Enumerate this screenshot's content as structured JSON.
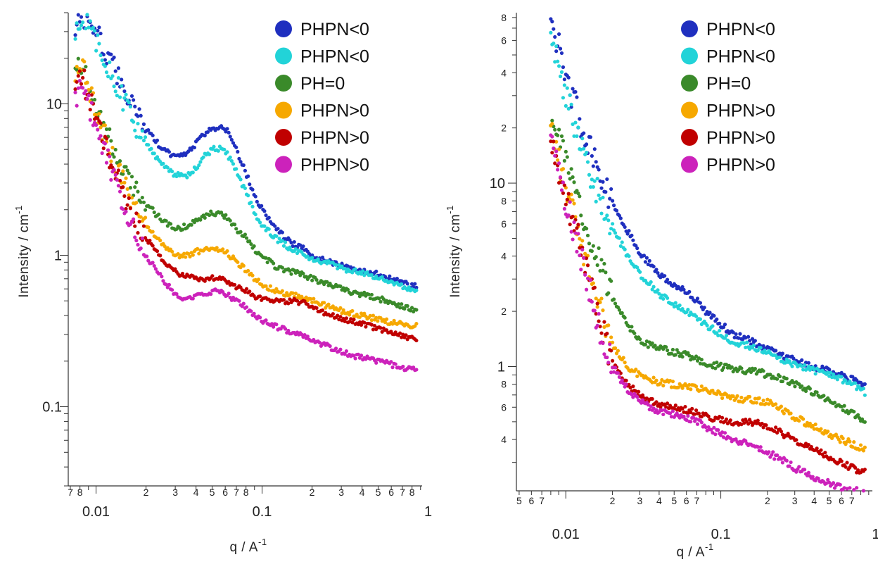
{
  "colors": {
    "navy": "#1f2fbf",
    "cyan": "#22d3d8",
    "green": "#3a8a2a",
    "orange": "#f6a800",
    "red": "#c00000",
    "magenta": "#cc22bb"
  },
  "chart_data": [
    {
      "type": "scatter",
      "xlabel": "q / A",
      "xlabel_sup": "-1",
      "ylabel": "Intensity / cm",
      "ylabel_sup": "-1",
      "xscale": "log",
      "yscale": "log",
      "xlim": [
        0.0068,
        0.92
      ],
      "ylim": [
        0.03,
        40
      ],
      "x_major_ticks": [
        {
          "v": 0.01,
          "label": "0.01"
        },
        {
          "v": 0.1,
          "label": "0.1"
        },
        {
          "v": 1,
          "label": "1"
        }
      ],
      "x_minor_ticks": [
        {
          "v": 0.007,
          "label": "7"
        },
        {
          "v": 0.008,
          "label": "8"
        },
        {
          "v": 0.02,
          "label": "2"
        },
        {
          "v": 0.03,
          "label": "3"
        },
        {
          "v": 0.04,
          "label": "4"
        },
        {
          "v": 0.05,
          "label": "5"
        },
        {
          "v": 0.06,
          "label": "6"
        },
        {
          "v": 0.07,
          "label": "7"
        },
        {
          "v": 0.08,
          "label": "8"
        },
        {
          "v": 0.2,
          "label": "2"
        },
        {
          "v": 0.3,
          "label": "3"
        },
        {
          "v": 0.4,
          "label": "4"
        },
        {
          "v": 0.5,
          "label": "5"
        },
        {
          "v": 0.6,
          "label": "6"
        },
        {
          "v": 0.7,
          "label": "7"
        },
        {
          "v": 0.8,
          "label": "8"
        }
      ],
      "y_major_ticks": [
        {
          "v": 0.1,
          "label": "0.1"
        },
        {
          "v": 1,
          "label": "1"
        },
        {
          "v": 10,
          "label": "10"
        }
      ],
      "y_minor_ticks": [],
      "legend_position": "top-right",
      "series": [
        {
          "name": "PHPN<0",
          "color": "navy",
          "x": [
            0.0075,
            0.008,
            0.0085,
            0.009,
            0.01,
            0.012,
            0.015,
            0.02,
            0.025,
            0.03,
            0.035,
            0.04,
            0.045,
            0.05,
            0.055,
            0.06,
            0.065,
            0.07,
            0.08,
            0.09,
            0.1,
            0.12,
            0.15,
            0.18,
            0.2,
            0.25,
            0.3,
            0.4,
            0.5,
            0.6,
            0.7,
            0.8,
            0.85
          ],
          "y": [
            32,
            36,
            38,
            37,
            30,
            20,
            12,
            7,
            5,
            4.5,
            4.6,
            5.5,
            6.3,
            6.8,
            7.0,
            6.8,
            6.2,
            5.0,
            3.5,
            2.5,
            2.0,
            1.5,
            1.2,
            1.1,
            1.0,
            0.92,
            0.85,
            0.8,
            0.75,
            0.7,
            0.66,
            0.63,
            0.62
          ]
        },
        {
          "name": "PHPN<0",
          "color": "cyan",
          "x": [
            0.0075,
            0.008,
            0.0085,
            0.009,
            0.01,
            0.012,
            0.015,
            0.02,
            0.025,
            0.03,
            0.035,
            0.04,
            0.045,
            0.05,
            0.055,
            0.06,
            0.065,
            0.07,
            0.08,
            0.09,
            0.1,
            0.12,
            0.15,
            0.18,
            0.2,
            0.25,
            0.3,
            0.4,
            0.5,
            0.6,
            0.7,
            0.8,
            0.85
          ],
          "y": [
            28,
            32,
            34,
            32,
            25,
            17,
            10,
            5.5,
            4.0,
            3.4,
            3.3,
            3.8,
            4.5,
            5.0,
            5.1,
            4.8,
            4.3,
            3.6,
            2.6,
            1.9,
            1.6,
            1.3,
            1.1,
            1.0,
            0.95,
            0.88,
            0.82,
            0.76,
            0.72,
            0.67,
            0.63,
            0.6,
            0.59
          ]
        },
        {
          "name": "PH=0",
          "color": "green",
          "x": [
            0.0075,
            0.008,
            0.0085,
            0.009,
            0.01,
            0.012,
            0.015,
            0.02,
            0.025,
            0.03,
            0.035,
            0.04,
            0.045,
            0.05,
            0.055,
            0.06,
            0.065,
            0.07,
            0.08,
            0.09,
            0.1,
            0.12,
            0.15,
            0.18,
            0.2,
            0.25,
            0.3,
            0.4,
            0.5,
            0.6,
            0.7,
            0.8,
            0.85
          ],
          "y": [
            16,
            19,
            18,
            15,
            10,
            6,
            3.5,
            2.2,
            1.7,
            1.5,
            1.55,
            1.7,
            1.8,
            1.9,
            1.9,
            1.8,
            1.65,
            1.5,
            1.3,
            1.1,
            0.98,
            0.85,
            0.78,
            0.74,
            0.7,
            0.64,
            0.6,
            0.55,
            0.52,
            0.49,
            0.46,
            0.44,
            0.43
          ]
        },
        {
          "name": "PHPN>0",
          "color": "orange",
          "x": [
            0.0075,
            0.008,
            0.0085,
            0.009,
            0.01,
            0.012,
            0.015,
            0.02,
            0.025,
            0.03,
            0.035,
            0.04,
            0.045,
            0.05,
            0.055,
            0.06,
            0.065,
            0.07,
            0.08,
            0.09,
            0.1,
            0.12,
            0.15,
            0.18,
            0.2,
            0.25,
            0.3,
            0.4,
            0.5,
            0.6,
            0.7,
            0.8,
            0.85
          ],
          "y": [
            14,
            17,
            16,
            13,
            9,
            5,
            2.8,
            1.6,
            1.2,
            1.0,
            1.0,
            1.05,
            1.1,
            1.12,
            1.1,
            1.05,
            0.98,
            0.9,
            0.8,
            0.7,
            0.64,
            0.58,
            0.55,
            0.53,
            0.5,
            0.46,
            0.43,
            0.4,
            0.38,
            0.36,
            0.35,
            0.34,
            0.34
          ]
        },
        {
          "name": "PHPN>0",
          "color": "red",
          "x": [
            0.0075,
            0.008,
            0.0085,
            0.009,
            0.01,
            0.012,
            0.015,
            0.02,
            0.025,
            0.03,
            0.035,
            0.04,
            0.045,
            0.05,
            0.055,
            0.06,
            0.065,
            0.07,
            0.08,
            0.09,
            0.1,
            0.12,
            0.15,
            0.18,
            0.2,
            0.25,
            0.3,
            0.4,
            0.5,
            0.6,
            0.7,
            0.8,
            0.85
          ],
          "y": [
            13,
            15,
            14,
            11,
            8,
            4.5,
            2.4,
            1.3,
            0.95,
            0.78,
            0.72,
            0.7,
            0.7,
            0.72,
            0.7,
            0.68,
            0.65,
            0.62,
            0.58,
            0.54,
            0.52,
            0.5,
            0.5,
            0.48,
            0.45,
            0.41,
            0.38,
            0.35,
            0.33,
            0.31,
            0.29,
            0.28,
            0.28
          ]
        },
        {
          "name": "PHPN>0",
          "color": "magenta",
          "x": [
            0.0075,
            0.008,
            0.0085,
            0.009,
            0.01,
            0.012,
            0.015,
            0.02,
            0.025,
            0.03,
            0.035,
            0.04,
            0.045,
            0.05,
            0.055,
            0.06,
            0.065,
            0.07,
            0.08,
            0.09,
            0.1,
            0.12,
            0.15,
            0.18,
            0.2,
            0.25,
            0.3,
            0.4,
            0.5,
            0.6,
            0.7,
            0.8,
            0.85
          ],
          "y": [
            11,
            13,
            12,
            10,
            7,
            4,
            2.0,
            1.0,
            0.7,
            0.55,
            0.52,
            0.53,
            0.56,
            0.58,
            0.58,
            0.56,
            0.53,
            0.5,
            0.45,
            0.4,
            0.37,
            0.34,
            0.31,
            0.3,
            0.27,
            0.25,
            0.23,
            0.21,
            0.2,
            0.19,
            0.18,
            0.175,
            0.175
          ]
        }
      ]
    },
    {
      "type": "scatter",
      "xlabel": "q / A",
      "xlabel_sup": "-1",
      "ylabel": "Intensity / cm",
      "ylabel_sup": "-1",
      "xscale": "log",
      "yscale": "log",
      "xlim": [
        0.0048,
        0.95
      ],
      "ylim": [
        0.21,
        85
      ],
      "x_major_ticks": [
        {
          "v": 0.01,
          "label": "0.01"
        },
        {
          "v": 0.1,
          "label": "0.1"
        },
        {
          "v": 1,
          "label": "1"
        }
      ],
      "x_minor_ticks": [
        {
          "v": 0.005,
          "label": "5"
        },
        {
          "v": 0.006,
          "label": "6"
        },
        {
          "v": 0.007,
          "label": "7"
        },
        {
          "v": 0.02,
          "label": "2"
        },
        {
          "v": 0.03,
          "label": "3"
        },
        {
          "v": 0.04,
          "label": "4"
        },
        {
          "v": 0.05,
          "label": "5"
        },
        {
          "v": 0.06,
          "label": "6"
        },
        {
          "v": 0.07,
          "label": "7"
        },
        {
          "v": 0.2,
          "label": "2"
        },
        {
          "v": 0.3,
          "label": "3"
        },
        {
          "v": 0.4,
          "label": "4"
        },
        {
          "v": 0.5,
          "label": "5"
        },
        {
          "v": 0.6,
          "label": "6"
        },
        {
          "v": 0.7,
          "label": "7"
        }
      ],
      "y_major_ticks": [
        {
          "v": 1,
          "label": "1"
        },
        {
          "v": 10,
          "label": "10"
        }
      ],
      "y_minor_ticks": [
        {
          "v": 0.4,
          "label": "4"
        },
        {
          "v": 0.6,
          "label": "6"
        },
        {
          "v": 0.8,
          "label": "8"
        },
        {
          "v": 2,
          "label": "2"
        },
        {
          "v": 4,
          "label": "4"
        },
        {
          "v": 6,
          "label": "6"
        },
        {
          "v": 8,
          "label": "8"
        },
        {
          "v": 20,
          "label": "2"
        },
        {
          "v": 40,
          "label": "4"
        },
        {
          "v": 60,
          "label": "6"
        },
        {
          "v": 80,
          "label": "8"
        }
      ],
      "legend_position": "top-right",
      "series": [
        {
          "name": "PHPN<0",
          "color": "navy",
          "x": [
            0.008,
            0.0085,
            0.009,
            0.0095,
            0.01,
            0.011,
            0.012,
            0.014,
            0.016,
            0.018,
            0.02,
            0.025,
            0.03,
            0.035,
            0.04,
            0.05,
            0.06,
            0.07,
            0.08,
            0.1,
            0.12,
            0.15,
            0.18,
            0.2,
            0.25,
            0.3,
            0.4,
            0.5,
            0.6,
            0.7,
            0.8,
            0.85
          ],
          "y": [
            78,
            66,
            55,
            45,
            38,
            30,
            24,
            16,
            12,
            9.5,
            8,
            5.5,
            4.2,
            3.6,
            3.2,
            2.8,
            2.6,
            2.3,
            2.0,
            1.7,
            1.5,
            1.4,
            1.3,
            1.25,
            1.15,
            1.08,
            1.0,
            0.95,
            0.9,
            0.85,
            0.8,
            0.78
          ]
        },
        {
          "name": "PHPN<0",
          "color": "cyan",
          "x": [
            0.008,
            0.0085,
            0.009,
            0.0095,
            0.01,
            0.011,
            0.012,
            0.014,
            0.016,
            0.018,
            0.02,
            0.025,
            0.03,
            0.035,
            0.04,
            0.05,
            0.06,
            0.07,
            0.08,
            0.1,
            0.12,
            0.15,
            0.18,
            0.2,
            0.25,
            0.3,
            0.4,
            0.5,
            0.6,
            0.7,
            0.8,
            0.85
          ],
          "y": [
            65,
            55,
            44,
            36,
            30,
            23,
            18,
            12,
            9,
            7,
            5.8,
            4.0,
            3.2,
            2.8,
            2.5,
            2.2,
            2.0,
            1.85,
            1.7,
            1.5,
            1.35,
            1.3,
            1.25,
            1.2,
            1.1,
            1.02,
            0.95,
            0.9,
            0.85,
            0.8,
            0.75,
            0.72
          ]
        },
        {
          "name": "PH=0",
          "color": "green",
          "x": [
            0.008,
            0.0085,
            0.009,
            0.0095,
            0.01,
            0.011,
            0.012,
            0.014,
            0.016,
            0.018,
            0.02,
            0.025,
            0.03,
            0.035,
            0.04,
            0.05,
            0.06,
            0.07,
            0.08,
            0.1,
            0.12,
            0.15,
            0.18,
            0.2,
            0.25,
            0.3,
            0.4,
            0.5,
            0.6,
            0.7,
            0.8,
            0.85
          ],
          "y": [
            24,
            20,
            17,
            15,
            13,
            10,
            8,
            5.5,
            4,
            3,
            2.4,
            1.7,
            1.4,
            1.3,
            1.25,
            1.2,
            1.15,
            1.1,
            1.05,
            1.0,
            0.97,
            0.95,
            0.93,
            0.9,
            0.85,
            0.8,
            0.72,
            0.65,
            0.6,
            0.56,
            0.52,
            0.5
          ]
        },
        {
          "name": "PHPN>0",
          "color": "orange",
          "x": [
            0.008,
            0.0085,
            0.009,
            0.0095,
            0.01,
            0.011,
            0.012,
            0.014,
            0.016,
            0.018,
            0.02,
            0.025,
            0.03,
            0.035,
            0.04,
            0.05,
            0.06,
            0.07,
            0.08,
            0.1,
            0.12,
            0.15,
            0.18,
            0.2,
            0.25,
            0.3,
            0.4,
            0.5,
            0.6,
            0.7,
            0.8,
            0.85
          ],
          "y": [
            20,
            16,
            13,
            11,
            9.5,
            7,
            5.5,
            3.5,
            2.3,
            1.7,
            1.3,
            1.0,
            0.9,
            0.85,
            0.82,
            0.8,
            0.78,
            0.76,
            0.74,
            0.7,
            0.67,
            0.66,
            0.65,
            0.64,
            0.58,
            0.53,
            0.47,
            0.43,
            0.4,
            0.38,
            0.36,
            0.35
          ]
        },
        {
          "name": "PHPN>0",
          "color": "red",
          "x": [
            0.008,
            0.0085,
            0.009,
            0.0095,
            0.01,
            0.011,
            0.012,
            0.014,
            0.016,
            0.018,
            0.02,
            0.025,
            0.03,
            0.035,
            0.04,
            0.05,
            0.06,
            0.07,
            0.08,
            0.1,
            0.12,
            0.15,
            0.18,
            0.2,
            0.25,
            0.3,
            0.4,
            0.5,
            0.6,
            0.7,
            0.8,
            0.85
          ],
          "y": [
            18,
            15,
            12,
            10,
            8.5,
            6.5,
            5,
            3.0,
            2.0,
            1.4,
            1.05,
            0.8,
            0.7,
            0.65,
            0.62,
            0.6,
            0.58,
            0.56,
            0.54,
            0.51,
            0.5,
            0.5,
            0.49,
            0.47,
            0.43,
            0.4,
            0.35,
            0.32,
            0.3,
            0.28,
            0.27,
            0.27
          ]
        },
        {
          "name": "PHPN>0",
          "color": "magenta",
          "x": [
            0.008,
            0.0085,
            0.009,
            0.0095,
            0.01,
            0.011,
            0.012,
            0.014,
            0.016,
            0.018,
            0.02,
            0.025,
            0.03,
            0.035,
            0.04,
            0.05,
            0.06,
            0.07,
            0.08,
            0.1,
            0.12,
            0.15,
            0.18,
            0.2,
            0.25,
            0.3,
            0.4,
            0.5,
            0.6,
            0.7,
            0.8,
            0.85
          ],
          "y": [
            17,
            14,
            11,
            9.5,
            8,
            6,
            4.6,
            2.8,
            1.8,
            1.3,
            1.0,
            0.75,
            0.65,
            0.6,
            0.57,
            0.55,
            0.53,
            0.5,
            0.47,
            0.43,
            0.4,
            0.38,
            0.36,
            0.34,
            0.31,
            0.28,
            0.25,
            0.23,
            0.22,
            0.21,
            0.21,
            0.21
          ]
        }
      ]
    }
  ]
}
